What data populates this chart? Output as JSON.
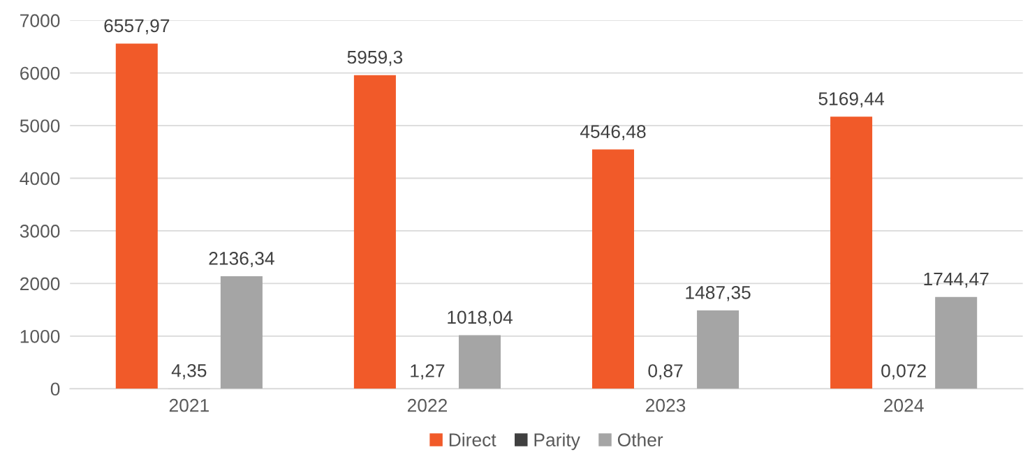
{
  "chart_data": {
    "type": "bar",
    "categories": [
      "2021",
      "2022",
      "2023",
      "2024"
    ],
    "series": [
      {
        "name": "Direct",
        "color": "#f15a29",
        "values": [
          6557.97,
          5959.3,
          4546.48,
          5169.44
        ],
        "value_labels": [
          "6557,97",
          "5959,3",
          "4546,48",
          "5169,44"
        ]
      },
      {
        "name": "Parity",
        "color": "#404040",
        "values": [
          4.35,
          1.27,
          0.87,
          0.072
        ],
        "value_labels": [
          "4,35",
          "1,27",
          "0,87",
          "0,072"
        ]
      },
      {
        "name": "Other",
        "color": "#a5a5a5",
        "values": [
          2136.34,
          1018.04,
          1487.35,
          1744.47
        ],
        "value_labels": [
          "2136,34",
          "1018,04",
          "1487,35",
          "1744,47"
        ]
      }
    ],
    "ylim": [
      0,
      7000
    ],
    "yticks": [
      0,
      1000,
      2000,
      3000,
      4000,
      5000,
      6000,
      7000
    ],
    "grid": "y",
    "legend": "bottom"
  }
}
